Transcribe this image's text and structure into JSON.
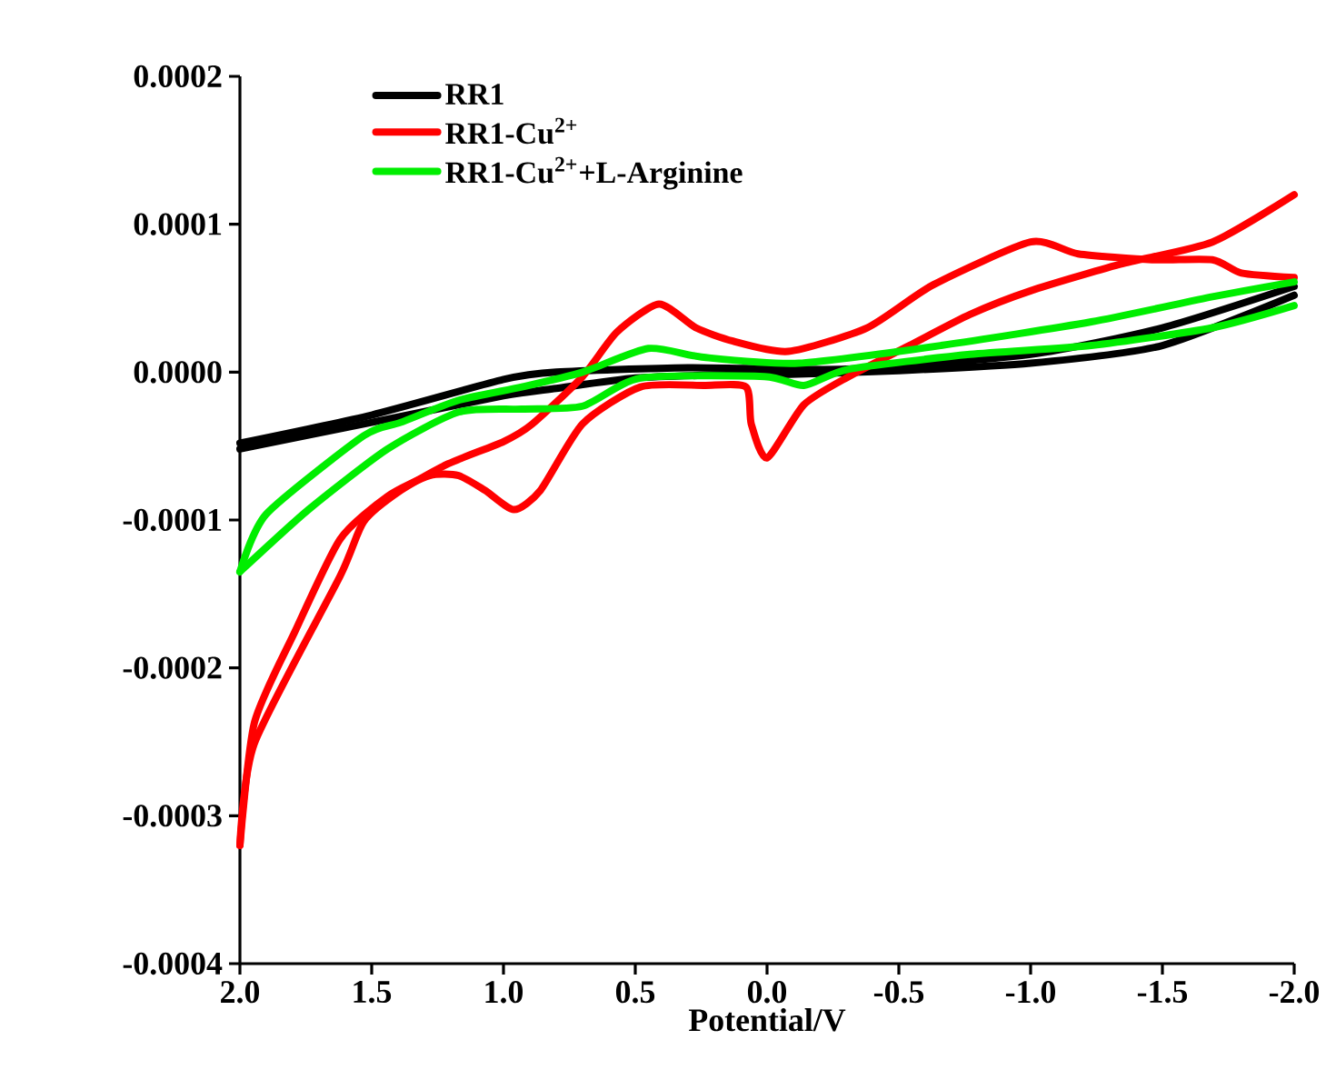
{
  "chart_data": {
    "type": "line",
    "xlabel": "Potential/V",
    "xlim": [
      2.0,
      -2.0
    ],
    "xticks": [
      {
        "value": 2.0,
        "label": "2.0"
      },
      {
        "value": 1.5,
        "label": "1.5"
      },
      {
        "value": 1.0,
        "label": "1.0"
      },
      {
        "value": 0.5,
        "label": "0.5"
      },
      {
        "value": 0.0,
        "label": "0.0"
      },
      {
        "value": -0.5,
        "label": "-0.5"
      },
      {
        "value": -1.0,
        "label": "-1.0"
      },
      {
        "value": -1.5,
        "label": "-1.5"
      },
      {
        "value": -2.0,
        "label": "-2.0"
      }
    ],
    "ylim": [
      -0.0004,
      0.0002
    ],
    "yticks": [
      -0.0004,
      -0.0003,
      -0.0002,
      -0.0001,
      {
        "value": 0,
        "label": "0.0000"
      },
      0.0001,
      0.0002
    ],
    "legend": "top left",
    "grid": false,
    "marker": "none",
    "line_style": "solid",
    "series": [
      {
        "name": "RR1",
        "color": "#000000",
        "x": [
          2.0,
          1.5,
          1.0,
          0.8,
          0.3,
          -0.3,
          -1.0,
          -1.5,
          -2.0
        ],
        "values": [
          -4.8e-05,
          -2.9e-05,
          -5e-06,
          0.0,
          3e-06,
          2e-06,
          1.2e-05,
          3e-05,
          5.8e-05
        ]
      },
      {
        "color": "#000000",
        "x": [
          2.0,
          1.5,
          1.0,
          0.8,
          0.5,
          0.2,
          0.0,
          -0.5,
          -1.0,
          -1.5,
          -2.0
        ],
        "values": [
          -5.2e-05,
          -3.4e-05,
          -1.6e-05,
          -1.1e-05,
          -4e-06,
          -2e-06,
          -2e-06,
          1e-06,
          6e-06,
          1.8e-05,
          5.2e-05
        ]
      },
      {
        "name": "RR1-Cu$^{2+}$",
        "color": "#ff0000",
        "x": [
          2.0,
          1.945,
          1.62,
          1.53,
          1.39,
          1.21,
          1.0,
          0.89,
          0.7,
          0.57,
          0.41,
          0.27,
          0.13,
          -0.08,
          -0.38,
          -0.63,
          -1.0,
          -1.18,
          -1.46,
          -1.69,
          -1.8,
          -2.0
        ],
        "values": [
          -0.00032,
          -0.000251,
          -0.000138,
          -0.000101,
          -8e-05,
          -6.2e-05,
          -4.7e-05,
          -3.5e-05,
          -3e-06,
          2.7e-05,
          4.6e-05,
          3e-05,
          2.1e-05,
          1.4e-05,
          3e-05,
          5.9e-05,
          8.8e-05,
          8e-05,
          7.6e-05,
          7.6e-05,
          6.7e-05,
          6.4e-05
        ]
      },
      {
        "color": "#ff0000",
        "x": [
          2.0,
          1.945,
          1.79,
          1.62,
          1.44,
          1.28,
          1.17,
          1.07,
          0.96,
          0.86,
          0.7,
          0.48,
          0.24,
          0.08,
          0.06,
          0.0,
          -0.14,
          -0.31,
          -0.54,
          -0.77,
          -1.0,
          -1.34,
          -1.69,
          -2.0
        ],
        "values": [
          -0.00032,
          -0.000237,
          -0.000175,
          -0.000113,
          -8.4e-05,
          -7e-05,
          -7e-05,
          -8e-05,
          -9.3e-05,
          -8e-05,
          -3.5e-05,
          -1e-05,
          -9e-06,
          -1e-05,
          -3.5e-05,
          -5.8e-05,
          -2.2e-05,
          -3e-06,
          1.8e-05,
          3.9e-05,
          5.5e-05,
          7.3e-05,
          8.8e-05,
          0.00012
        ]
      },
      {
        "name": "RR1-Cu$^{2+}$+L-Arginine",
        "color": "#00ee00",
        "x": [
          2.0,
          1.9,
          1.53,
          1.39,
          1.17,
          0.93,
          0.7,
          0.45,
          0.24,
          -0.12,
          -0.66,
          -1.23,
          -1.69,
          -2.0
        ],
        "values": [
          -0.000135,
          -9.6e-05,
          -4.3e-05,
          -3.4e-05,
          -1.9e-05,
          -1e-05,
          0.0,
          1.6e-05,
          1e-05,
          6e-06,
          1.8e-05,
          3.4e-05,
          5.1e-05,
          6.1e-05
        ]
      },
      {
        "color": "#00ee00",
        "x": [
          2.0,
          1.74,
          1.44,
          1.17,
          0.93,
          0.7,
          0.48,
          0.01,
          -0.14,
          -0.31,
          -0.77,
          -1.23,
          -1.69,
          -2.0
        ],
        "values": [
          -0.000135,
          -9.3e-05,
          -5.2e-05,
          -2.7e-05,
          -2.5e-05,
          -2.3e-05,
          -4e-06,
          -3e-06,
          -9e-06,
          2e-06,
          1.2e-05,
          1.8e-05,
          3e-05,
          4.5e-05
        ]
      }
    ]
  }
}
